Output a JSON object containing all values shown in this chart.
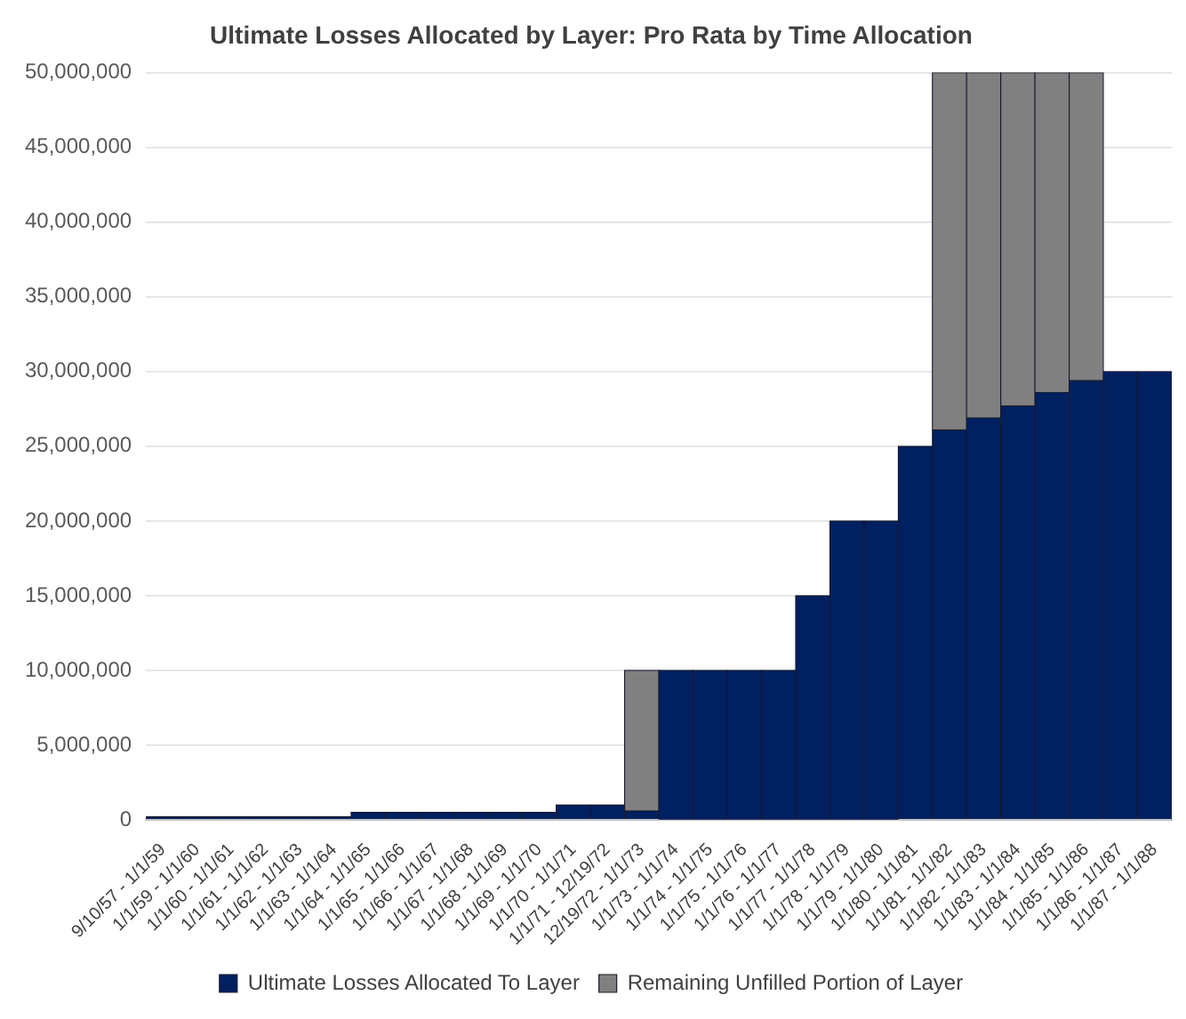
{
  "chart_data": {
    "type": "bar",
    "title": "Ultimate Losses Allocated by Layer: Pro Rata by Time Allocation",
    "categories": [
      "9/10/57 - 1/1/59",
      "1/1/59 - 1/1/60",
      "1/1/60 - 1/1/61",
      "1/1/61 - 1/1/62",
      "1/1/62 - 1/1/63",
      "1/1/63 - 1/1/64",
      "1/1/64 - 1/1/65",
      "1/1/65 - 1/1/66",
      "1/1/66 - 1/1/67",
      "1/1/67 - 1/1/68",
      "1/1/68 - 1/1/69",
      "1/1/69 - 1/1/70",
      "1/1/70 - 1/1/71",
      "1/1/71 - 12/19/72",
      "12/19/72 - 1/1/73",
      "1/1/73 - 1/1/74",
      "1/1/74 - 1/1/75",
      "1/1/75 - 1/1/76",
      "1/1/76 - 1/1/77",
      "1/1/77 - 1/1/78",
      "1/1/78 - 1/1/79",
      "1/1/79 - 1/1/80",
      "1/1/80 - 1/1/81",
      "1/1/81 - 1/1/82",
      "1/1/82 - 1/1/83",
      "1/1/83 - 1/1/84",
      "1/1/84 - 1/1/85",
      "1/1/85 - 1/1/86",
      "1/1/86 - 1/1/87",
      "1/1/87 - 1/1/88"
    ],
    "series": [
      {
        "name": "Ultimate Losses Allocated To Layer",
        "color": "#002060",
        "values": [
          200000,
          200000,
          200000,
          200000,
          200000,
          200000,
          500000,
          500000,
          500000,
          500000,
          500000,
          500000,
          1000000,
          1000000,
          600000,
          10000000,
          10000000,
          10000000,
          10000000,
          15000000,
          20000000,
          20000000,
          25000000,
          26100000,
          26900000,
          27700000,
          28600000,
          29400000,
          30000000,
          30000000
        ]
      },
      {
        "name": "Remaining Unfilled Portion of Layer",
        "color": "#808080",
        "values": [
          null,
          null,
          null,
          null,
          null,
          null,
          null,
          null,
          null,
          null,
          null,
          null,
          null,
          null,
          9400000,
          null,
          null,
          null,
          null,
          null,
          null,
          null,
          null,
          23900000,
          23100000,
          22300000,
          21400000,
          20600000,
          null,
          null
        ]
      }
    ],
    "stacked": true,
    "ylim": [
      0,
      50000000
    ],
    "yticks": [
      0,
      {
        "value": 5000000,
        "label": "5,000,000"
      },
      {
        "value": 10000000,
        "label": "10,000,000"
      },
      {
        "value": 15000000,
        "label": "15,000,000"
      },
      {
        "value": 20000000,
        "label": "20,000,000"
      },
      {
        "value": 25000000,
        "label": "25,000,000"
      },
      {
        "value": 30000000,
        "label": "30,000,000"
      },
      {
        "value": 35000000,
        "label": "35,000,000"
      },
      {
        "value": 40000000,
        "label": "40,000,000"
      },
      {
        "value": 45000000,
        "label": "45,000,000"
      },
      {
        "value": 50000000,
        "label": "50,000,000"
      }
    ],
    "grid": "y",
    "legend": "bottom"
  }
}
